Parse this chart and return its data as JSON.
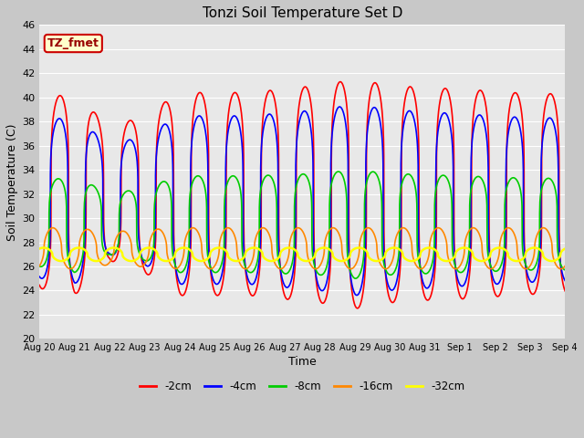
{
  "title": "Tonzi Soil Temperature Set D",
  "xlabel": "Time",
  "ylabel": "Soil Temperature (C)",
  "ylim": [
    20,
    46
  ],
  "yticks": [
    20,
    22,
    24,
    26,
    28,
    30,
    32,
    34,
    36,
    38,
    40,
    42,
    44,
    46
  ],
  "xtick_labels": [
    "Aug 20",
    "Aug 21",
    "Aug 22",
    "Aug 23",
    "Aug 24",
    "Aug 25",
    "Aug 26",
    "Aug 27",
    "Aug 28",
    "Aug 29",
    "Aug 30",
    "Aug 31",
    "Sep 1",
    "Sep 2",
    "Sep 3",
    "Sep 4"
  ],
  "fig_bg": "#c8c8c8",
  "plot_bg": "#e8e8e8",
  "legend_label": "TZ_fmet",
  "legend_bg": "#ffffcc",
  "legend_border": "#cc0000",
  "series_names": [
    "-2cm",
    "-4cm",
    "-8cm",
    "-16cm",
    "-32cm"
  ],
  "series_colors": [
    "#ff0000",
    "#0000ff",
    "#00cc00",
    "#ff8800",
    "#ffff00"
  ],
  "series_lw": [
    1.2,
    1.2,
    1.2,
    1.2,
    1.8
  ],
  "series_mean": [
    32.0,
    31.5,
    29.5,
    27.5,
    27.0
  ],
  "series_amp": [
    10.0,
    8.5,
    5.0,
    1.7,
    0.55
  ],
  "series_phase": [
    0.0,
    0.12,
    0.35,
    1.25,
    2.9
  ],
  "peak_power": 4.0,
  "daily_amp_mod": {
    "-2cm": [
      0.78,
      0.84,
      0.55,
      0.65,
      0.84,
      0.84,
      0.84,
      0.87,
      0.9,
      0.95,
      0.9,
      0.88,
      0.87,
      0.85,
      0.83
    ],
    "-4cm": [
      0.76,
      0.82,
      0.53,
      0.63,
      0.82,
      0.82,
      0.82,
      0.85,
      0.88,
      0.93,
      0.88,
      0.86,
      0.84,
      0.82,
      0.8
    ],
    "-8cm": [
      0.7,
      0.8,
      0.5,
      0.6,
      0.8,
      0.8,
      0.8,
      0.82,
      0.84,
      0.9,
      0.84,
      0.82,
      0.8,
      0.78,
      0.76
    ],
    "-16cm": [
      1.0,
      1.0,
      0.8,
      0.9,
      1.0,
      1.0,
      1.0,
      1.0,
      1.0,
      1.0,
      1.0,
      1.0,
      1.0,
      1.0,
      1.0
    ],
    "-32cm": [
      1.0,
      1.0,
      1.0,
      1.0,
      1.0,
      1.0,
      1.0,
      1.0,
      1.0,
      1.0,
      1.0,
      1.0,
      1.0,
      1.0,
      1.0
    ]
  }
}
